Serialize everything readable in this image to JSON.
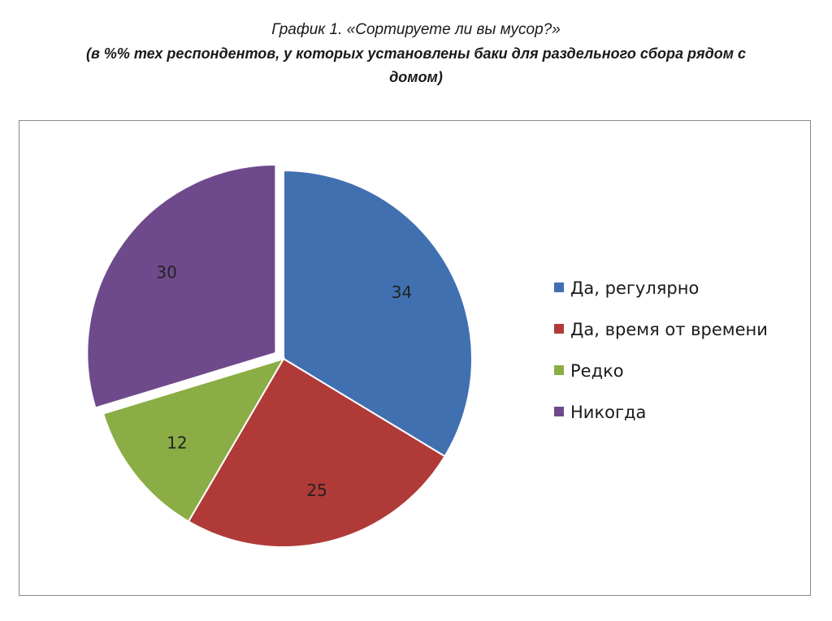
{
  "header": {
    "title": "График 1. «Сортируете ли вы мусор?»",
    "subtitle_line1": "(в %% тех респондентов, у которых установлены баки для раздельного сбора рядом с",
    "subtitle_line2": "домом)"
  },
  "chart_data": {
    "type": "pie",
    "title": "График 1. «Сортируете ли вы мусор?»",
    "subtitle": "(в %% тех респондентов, у которых установлены баки для раздельного сбора рядом с домом)",
    "categories": [
      "Да, регулярно",
      "Да, время от времени",
      "Редко",
      "Никогда"
    ],
    "values": [
      34,
      25,
      12,
      30
    ],
    "colors": [
      "#4170b1",
      "#b03a38",
      "#8bad45",
      "#6e4a8c"
    ],
    "data_labels": [
      "34",
      "25",
      "12",
      "30"
    ],
    "exploded": [
      false,
      false,
      false,
      true
    ],
    "legend_position": "right"
  }
}
